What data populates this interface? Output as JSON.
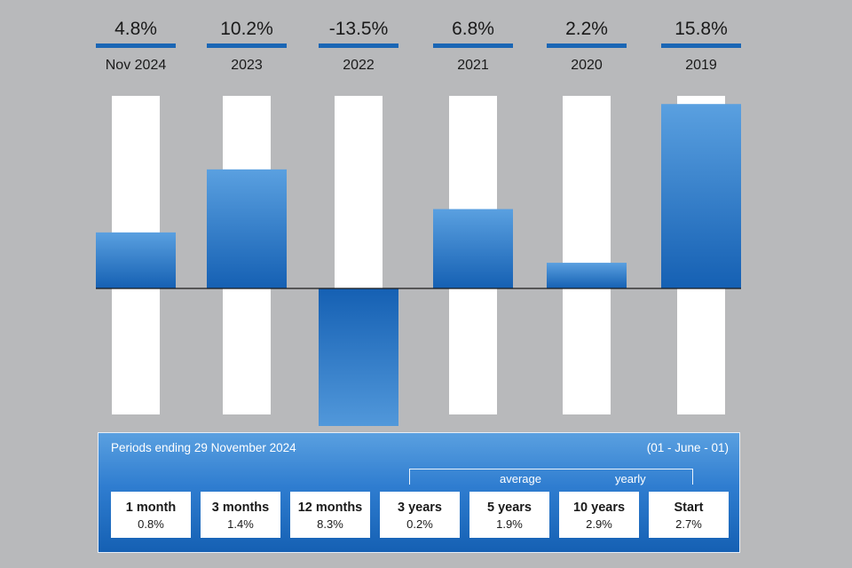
{
  "chart_data": {
    "type": "bar",
    "categories": [
      "Nov 2024",
      "2023",
      "2022",
      "2021",
      "2020",
      "2019"
    ],
    "values": [
      4.8,
      10.2,
      -13.5,
      6.8,
      2.2,
      15.8
    ],
    "value_labels": [
      "4.8%",
      "10.2%",
      "-13.5%",
      "6.8%",
      "2.2%",
      "15.8%"
    ],
    "ylim": [
      -15.7,
      16.5
    ],
    "unit": "%",
    "grid": false,
    "colors": {
      "bar_top": "#5aa0e0",
      "bar_bottom": "#1560b3",
      "track": "#ffffff",
      "header_line": "#1a66b5",
      "background": "#b8b9bb"
    }
  },
  "summary": {
    "title": "Periods ending 29 November 2024",
    "range_note": "(01 - June - 01)",
    "average_word": "average",
    "yearly_word": "yearly",
    "periods": [
      {
        "label": "1 month",
        "value": "0.8%"
      },
      {
        "label": "3 months",
        "value": "1.4%"
      },
      {
        "label": "12 months",
        "value": "8.3%"
      },
      {
        "label": "3 years",
        "value": "0.2%"
      },
      {
        "label": "5 years",
        "value": "1.9%"
      },
      {
        "label": "10 years",
        "value": "2.9%"
      },
      {
        "label": "Start",
        "value": "2.7%"
      }
    ]
  }
}
